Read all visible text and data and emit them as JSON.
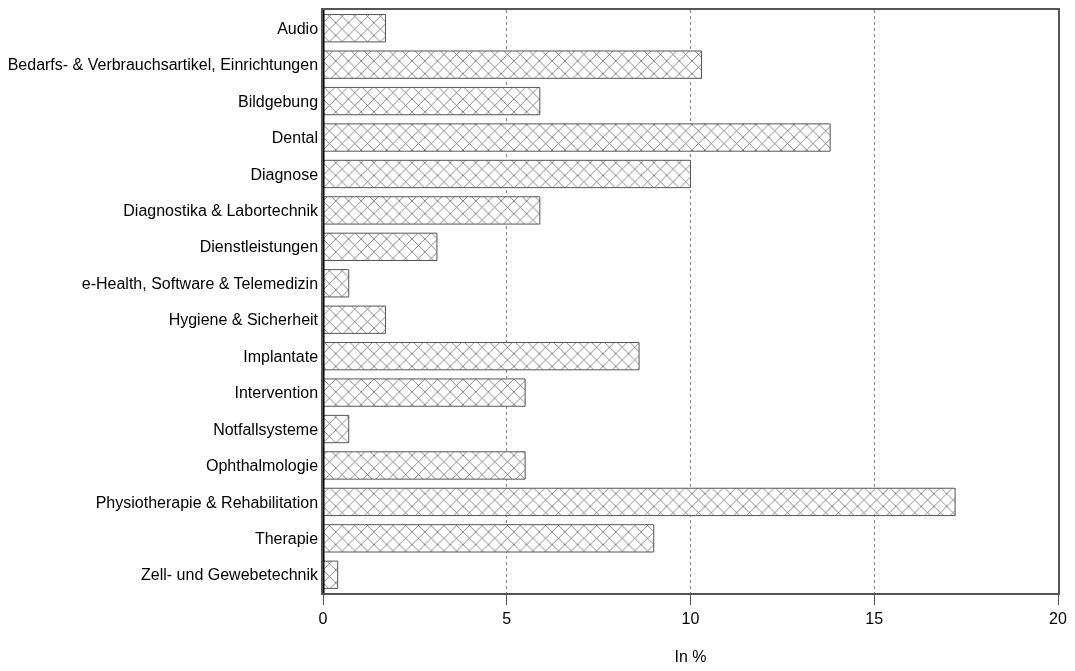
{
  "chart_data": {
    "type": "bar",
    "orientation": "horizontal",
    "xlabel": "In %",
    "categories": [
      "Audio",
      "Bedarfs- & Verbrauchsartikel, Einrichtungen",
      "Bildgebung",
      "Dental",
      "Diagnose",
      "Diagnostika & Labortechnik",
      "Dienstleistungen",
      "e-Health, Software & Telemedizin",
      "Hygiene & Sicherheit",
      "Implantate",
      "Intervention",
      "Notfallsysteme",
      "Ophthalmologie",
      "Physiotherapie & Rehabilitation",
      "Therapie",
      "Zell- und Gewebetechnik"
    ],
    "values": [
      1.7,
      10.3,
      5.9,
      13.8,
      10.0,
      5.9,
      3.1,
      0.7,
      1.7,
      8.6,
      5.5,
      0.7,
      5.5,
      17.2,
      9.0,
      0.4
    ],
    "color": "#555555",
    "xlim": [
      0,
      20
    ],
    "xticks": [
      0,
      5,
      10,
      15,
      20
    ],
    "grid": "x"
  }
}
